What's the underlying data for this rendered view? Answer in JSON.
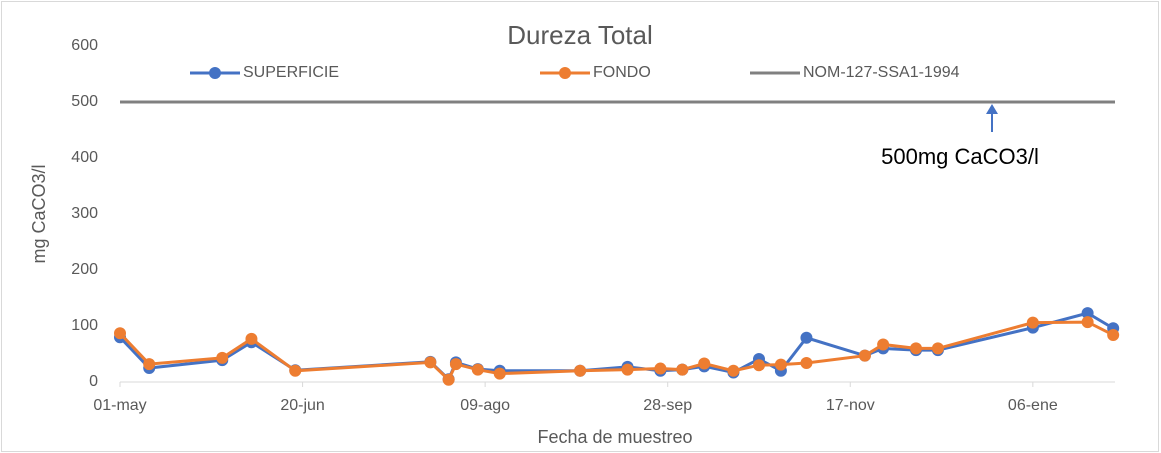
{
  "chart_data": {
    "type": "line",
    "title": "Dureza Total",
    "x_label": "Fecha de muestreo",
    "y_label": "mg CaCO3/l",
    "annotation": "500mg CaCO3/l",
    "xlim": [
      0,
      272.5
    ],
    "xticks": [
      {
        "value": 0,
        "label": "01-may"
      },
      {
        "value": 50,
        "label": "20-jun"
      },
      {
        "value": 100,
        "label": "09-ago"
      },
      {
        "value": 150,
        "label": "28-sep"
      },
      {
        "value": 200,
        "label": "17-nov"
      },
      {
        "value": 250,
        "label": "06-ene"
      }
    ],
    "ylim": [
      0,
      600
    ],
    "yticks": [
      0,
      100,
      200,
      300,
      400,
      500,
      600
    ],
    "grid": false,
    "legend": "top",
    "series": [
      {
        "name": "SUPERFICIE",
        "color": "#4472c4",
        "x": [
          0,
          8,
          28,
          36,
          48,
          85,
          90,
          92,
          98,
          104,
          126,
          139,
          148,
          154,
          160,
          168,
          175,
          181,
          188,
          204,
          209,
          218,
          224,
          250,
          265,
          272
        ],
        "values": [
          80,
          25,
          39,
          71,
          21,
          36,
          5,
          35,
          23,
          20,
          20,
          27,
          20,
          22,
          28,
          17,
          41,
          20,
          79,
          47,
          60,
          57,
          57,
          97,
          123,
          96
        ]
      },
      {
        "name": "FONDO",
        "color": "#ed7d31",
        "x": [
          0,
          8,
          28,
          36,
          48,
          85,
          90,
          92,
          98,
          104,
          126,
          139,
          148,
          154,
          160,
          168,
          175,
          181,
          188,
          204,
          209,
          218,
          224,
          250,
          265,
          272
        ],
        "values": [
          87,
          32,
          43,
          77,
          20,
          35,
          4,
          32,
          22,
          15,
          20,
          22,
          24,
          22,
          33,
          20,
          30,
          31,
          34,
          47,
          67,
          60,
          60,
          106,
          107,
          84
        ]
      },
      {
        "name": "NOM-127-SSA1-1994",
        "color": "#808080",
        "markers": false,
        "x": [
          0,
          272.5
        ],
        "values": [
          500,
          500
        ]
      }
    ]
  }
}
